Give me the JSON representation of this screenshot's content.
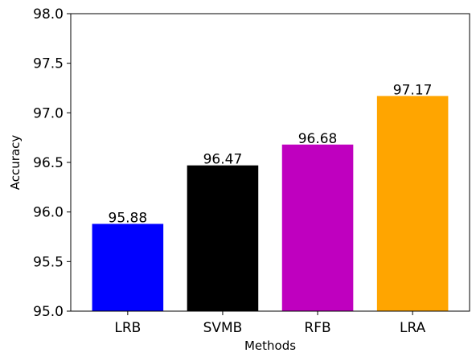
{
  "chart_data": {
    "type": "bar",
    "xlabel": "Methods",
    "ylabel": "Accuracy",
    "categories": [
      "LRB",
      "SVMB",
      "RFB",
      "LRA"
    ],
    "values": [
      95.88,
      96.47,
      96.68,
      97.17
    ],
    "value_labels": [
      "95.88",
      "96.47",
      "96.68",
      "97.17"
    ],
    "colors": [
      "#0000ff",
      "#000000",
      "#bf00bf",
      "#ffa500"
    ],
    "ylim": [
      95.0,
      98.0
    ],
    "yticks": [
      95.0,
      95.5,
      96.0,
      96.5,
      97.0,
      97.5,
      98.0
    ],
    "ytick_labels": [
      "95.0",
      "95.5",
      "96.0",
      "96.5",
      "97.0",
      "97.5",
      "98.0"
    ],
    "grid": false,
    "legend": "none"
  }
}
